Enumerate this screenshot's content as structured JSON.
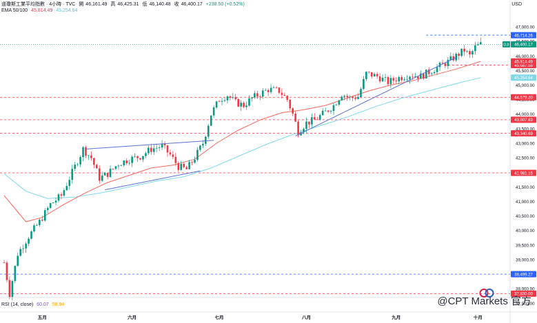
{
  "header": {
    "symbol_line": "道瓊斯工業平均指數 · 4小時 · TVC",
    "open_label": "開",
    "open": "46,161.49",
    "high_label": "高",
    "high": "46,425.31",
    "low_label": "低",
    "low": "46,140.48",
    "close_label": "收",
    "close": "46,400.17",
    "change": "+238.50 (+0.52%)",
    "ema_label": "EMA 50/100",
    "ema50": "45,814.49",
    "ema100": "45,254.64",
    "rsi_label": "RSI (14, close)",
    "rsi_value": "60.07",
    "rsi_ma": "58.94",
    "currency": "USD",
    "watermark": "@CPT Markets 官方"
  },
  "colors": {
    "up": "#089981",
    "down": "#f23645",
    "ema50": "#f7685b",
    "ema100": "#7fd8ea",
    "trend": "#5b6fd6",
    "red_level": "#f23645",
    "blue_level": "#2962ff"
  },
  "chart_data": {
    "type": "candlestick",
    "title": "道瓊斯工業平均指數",
    "ylim": [
      37200,
      47450
    ],
    "y_ticks": [
      "47,000.00",
      "46,500.00",
      "46,000.00",
      "45,500.00",
      "45,000.00",
      "44,500.00",
      "44,000.00",
      "43,500.00",
      "43,000.00",
      "42,500.00",
      "42,000.00",
      "41,500.00",
      "41,000.00",
      "40,500.00",
      "40,000.00",
      "39,500.00",
      "39,000.00",
      "38,500.00",
      "38,000.00",
      "37,500.00"
    ],
    "x_labels": [
      "五月",
      "六月",
      "七月",
      "八月",
      "九月",
      "十月"
    ],
    "price_path": [
      {
        "t": 0,
        "v": 38900
      },
      {
        "t": 2,
        "v": 37830
      },
      {
        "t": 5,
        "v": 39200
      },
      {
        "t": 9,
        "v": 39800
      },
      {
        "t": 13,
        "v": 40300
      },
      {
        "t": 17,
        "v": 40900
      },
      {
        "t": 21,
        "v": 41200
      },
      {
        "t": 25,
        "v": 42000
      },
      {
        "t": 29,
        "v": 42800
      },
      {
        "t": 32,
        "v": 42500
      },
      {
        "t": 35,
        "v": 41800
      },
      {
        "t": 38,
        "v": 41950
      },
      {
        "t": 42,
        "v": 42300
      },
      {
        "t": 46,
        "v": 42450
      },
      {
        "t": 50,
        "v": 42550
      },
      {
        "t": 54,
        "v": 42800
      },
      {
        "t": 58,
        "v": 42900
      },
      {
        "t": 61,
        "v": 42600
      },
      {
        "t": 64,
        "v": 42200
      },
      {
        "t": 67,
        "v": 42100
      },
      {
        "t": 70,
        "v": 42500
      },
      {
        "t": 73,
        "v": 43000
      },
      {
        "t": 76,
        "v": 44000
      },
      {
        "t": 79,
        "v": 44500
      },
      {
        "t": 82,
        "v": 44650
      },
      {
        "t": 85,
        "v": 44400
      },
      {
        "t": 88,
        "v": 44300
      },
      {
        "t": 91,
        "v": 44550
      },
      {
        "t": 94,
        "v": 44700
      },
      {
        "t": 97,
        "v": 44850
      },
      {
        "t": 101,
        "v": 44800
      },
      {
        "t": 104,
        "v": 44500
      },
      {
        "t": 106,
        "v": 44000
      },
      {
        "t": 108,
        "v": 43400
      },
      {
        "t": 111,
        "v": 43700
      },
      {
        "t": 114,
        "v": 43800
      },
      {
        "t": 117,
        "v": 44000
      },
      {
        "t": 121,
        "v": 44300
      },
      {
        "t": 124,
        "v": 44700
      },
      {
        "t": 127,
        "v": 44550
      },
      {
        "t": 130,
        "v": 44600
      },
      {
        "t": 133,
        "v": 45400
      },
      {
        "t": 137,
        "v": 45300
      },
      {
        "t": 141,
        "v": 45100
      },
      {
        "t": 145,
        "v": 45250
      },
      {
        "t": 149,
        "v": 45350
      },
      {
        "t": 153,
        "v": 45300
      },
      {
        "t": 157,
        "v": 45500
      },
      {
        "t": 160,
        "v": 45650
      },
      {
        "t": 163,
        "v": 45800
      },
      {
        "t": 166,
        "v": 46000
      },
      {
        "t": 169,
        "v": 46200
      },
      {
        "t": 171,
        "v": 46000
      },
      {
        "t": 173,
        "v": 46300
      },
      {
        "t": 175,
        "v": 46400
      }
    ],
    "ema50_path": [
      {
        "t": 0,
        "v": 41200
      },
      {
        "t": 8,
        "v": 40300
      },
      {
        "t": 14,
        "v": 40450
      },
      {
        "t": 22,
        "v": 40900
      },
      {
        "t": 30,
        "v": 41300
      },
      {
        "t": 38,
        "v": 41650
      },
      {
        "t": 46,
        "v": 41900
      },
      {
        "t": 54,
        "v": 42150
      },
      {
        "t": 62,
        "v": 42250
      },
      {
        "t": 70,
        "v": 42450
      },
      {
        "t": 78,
        "v": 43000
      },
      {
        "t": 86,
        "v": 43450
      },
      {
        "t": 94,
        "v": 43800
      },
      {
        "t": 102,
        "v": 44050
      },
      {
        "t": 110,
        "v": 44150
      },
      {
        "t": 118,
        "v": 44300
      },
      {
        "t": 126,
        "v": 44550
      },
      {
        "t": 134,
        "v": 44800
      },
      {
        "t": 142,
        "v": 45000
      },
      {
        "t": 150,
        "v": 45150
      },
      {
        "t": 158,
        "v": 45350
      },
      {
        "t": 166,
        "v": 45550
      },
      {
        "t": 175,
        "v": 45814.49
      }
    ],
    "ema100_path": [
      {
        "t": 0,
        "v": 41950
      },
      {
        "t": 8,
        "v": 41350
      },
      {
        "t": 16,
        "v": 41100
      },
      {
        "t": 26,
        "v": 41150
      },
      {
        "t": 36,
        "v": 41300
      },
      {
        "t": 46,
        "v": 41500
      },
      {
        "t": 56,
        "v": 41700
      },
      {
        "t": 66,
        "v": 41850
      },
      {
        "t": 76,
        "v": 42150
      },
      {
        "t": 86,
        "v": 42550
      },
      {
        "t": 96,
        "v": 42950
      },
      {
        "t": 106,
        "v": 43300
      },
      {
        "t": 116,
        "v": 43600
      },
      {
        "t": 126,
        "v": 43900
      },
      {
        "t": 136,
        "v": 44250
      },
      {
        "t": 146,
        "v": 44550
      },
      {
        "t": 156,
        "v": 44800
      },
      {
        "t": 166,
        "v": 45050
      },
      {
        "t": 175,
        "v": 45254.64
      }
    ],
    "trendlines": [
      {
        "t1": 30,
        "v1": 42800,
        "t2": 77,
        "v2": 43100
      },
      {
        "t1": 37,
        "v1": 41400,
        "t2": 72,
        "v2": 42050
      },
      {
        "t1": 107,
        "v1": 43250,
        "t2": 166,
        "v2": 45950
      }
    ],
    "horizontal_levels": [
      {
        "value": 46714.26,
        "label": "46,714.26",
        "style": "blue"
      },
      {
        "value": 45687.58,
        "label": "45,687.58",
        "style": "red"
      },
      {
        "value": 44579.2,
        "label": "44,579.20",
        "style": "red"
      },
      {
        "value": 43807.83,
        "label": "43,807.83",
        "style": "red"
      },
      {
        "value": 43340.69,
        "label": "43,340.69",
        "style": "red"
      },
      {
        "value": 41981.15,
        "label": "41,981.15",
        "style": "red"
      },
      {
        "value": 38499.27,
        "label": "38,499.27",
        "style": "blue"
      },
      {
        "value": 37830.0,
        "label": "37,830.00",
        "style": "red"
      }
    ],
    "price_tags": [
      {
        "value": 46400.17,
        "label": "46,400.17",
        "color": "#089981",
        "prefix": "DJI"
      },
      {
        "value": 45814.49,
        "label": "45,814.49",
        "color": "#f23645"
      },
      {
        "value": 45254.64,
        "label": "45,254.64",
        "color": "#7fd8ea"
      }
    ]
  }
}
